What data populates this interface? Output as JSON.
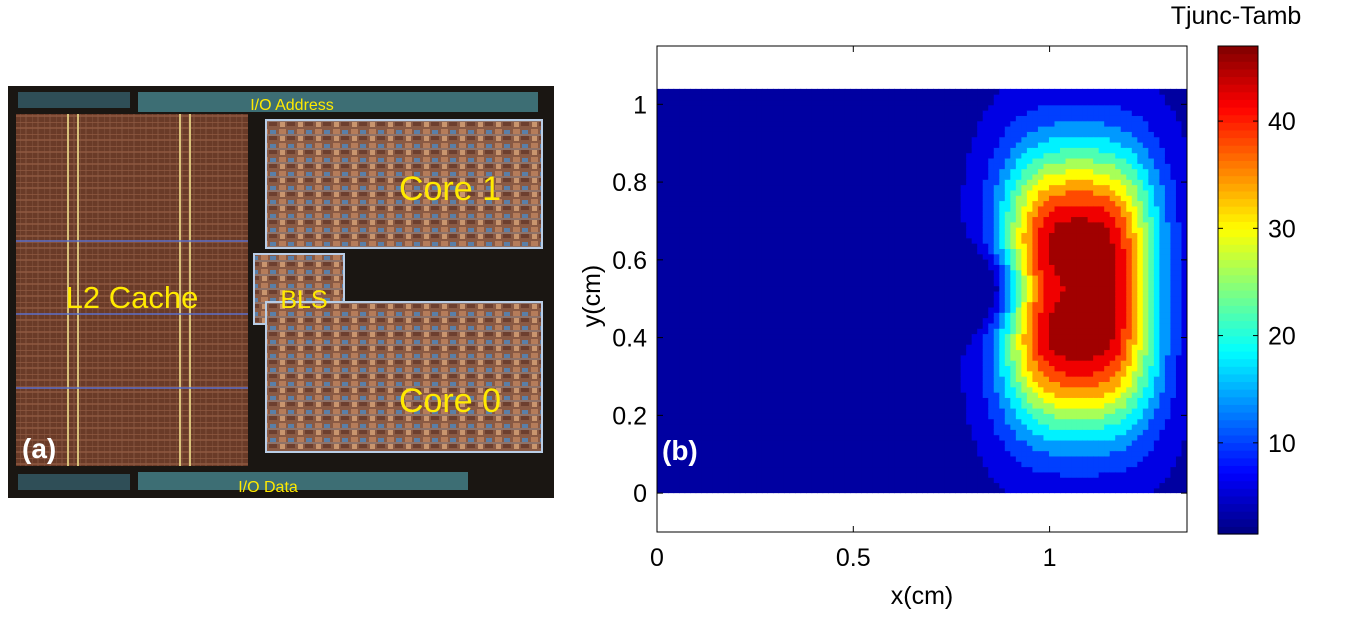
{
  "panel_a": {
    "label": "(a)",
    "blocks": {
      "io_address": "I/O Address",
      "io_data": "I/O Data",
      "l2_cache": "L2 Cache",
      "bls": "BLS",
      "core1": "Core 1",
      "core0": "Core 0"
    }
  },
  "panel_b": {
    "label": "(b)"
  },
  "colorbar": {
    "title": "Tjunc-Tamb",
    "ticks": [
      "10",
      "20",
      "30",
      "40"
    ],
    "tick_values": [
      10,
      20,
      30,
      40
    ],
    "range": [
      1.5,
      47
    ],
    "colormap": "jet"
  },
  "chart_data": {
    "type": "heatmap",
    "style": "filled contour",
    "xlabel": "x(cm)",
    "ylabel": "y(cm)",
    "xlim": [
      0,
      1.35
    ],
    "ylim": [
      -0.1,
      1.15
    ],
    "xticks": [
      "0",
      "0.5",
      "1"
    ],
    "xtick_values": [
      0,
      0.5,
      1
    ],
    "yticks": [
      "0",
      "0.2",
      "0.4",
      "0.6",
      "0.8",
      "1"
    ],
    "ytick_values": [
      0,
      0.2,
      0.4,
      0.6,
      0.8,
      1
    ],
    "data_extent": {
      "x": [
        0,
        1.35
      ],
      "y": [
        0,
        1.04
      ]
    },
    "levels": [
      4,
      8,
      12,
      16,
      20,
      24,
      28,
      32,
      36,
      40,
      44
    ],
    "min_value": 2,
    "max_value": 47,
    "hot_region": {
      "x": [
        0.9,
        1.25
      ],
      "y": [
        0.2,
        0.85
      ]
    },
    "colder_notch": {
      "x": [
        0.6,
        0.9
      ],
      "y": [
        0.45,
        0.6
      ]
    }
  }
}
